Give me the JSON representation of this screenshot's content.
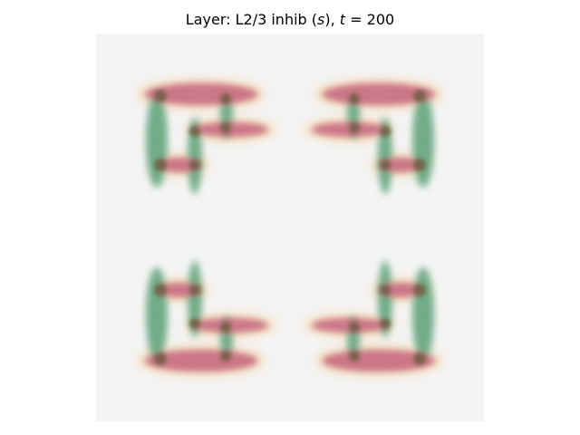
{
  "figure": {
    "title_prefix": "Layer: L2/3 inhib (",
    "title_var": "s",
    "title_mid": "), ",
    "title_time_var": "t",
    "title_eq": " = 200"
  },
  "image": {
    "background_color": "#f4f4f4",
    "colors": {
      "horizontal_bar": "#c97286",
      "vertical_bar": "#6aa882",
      "halo": "#f2b15a",
      "junction": "#6a5b3d"
    }
  }
}
